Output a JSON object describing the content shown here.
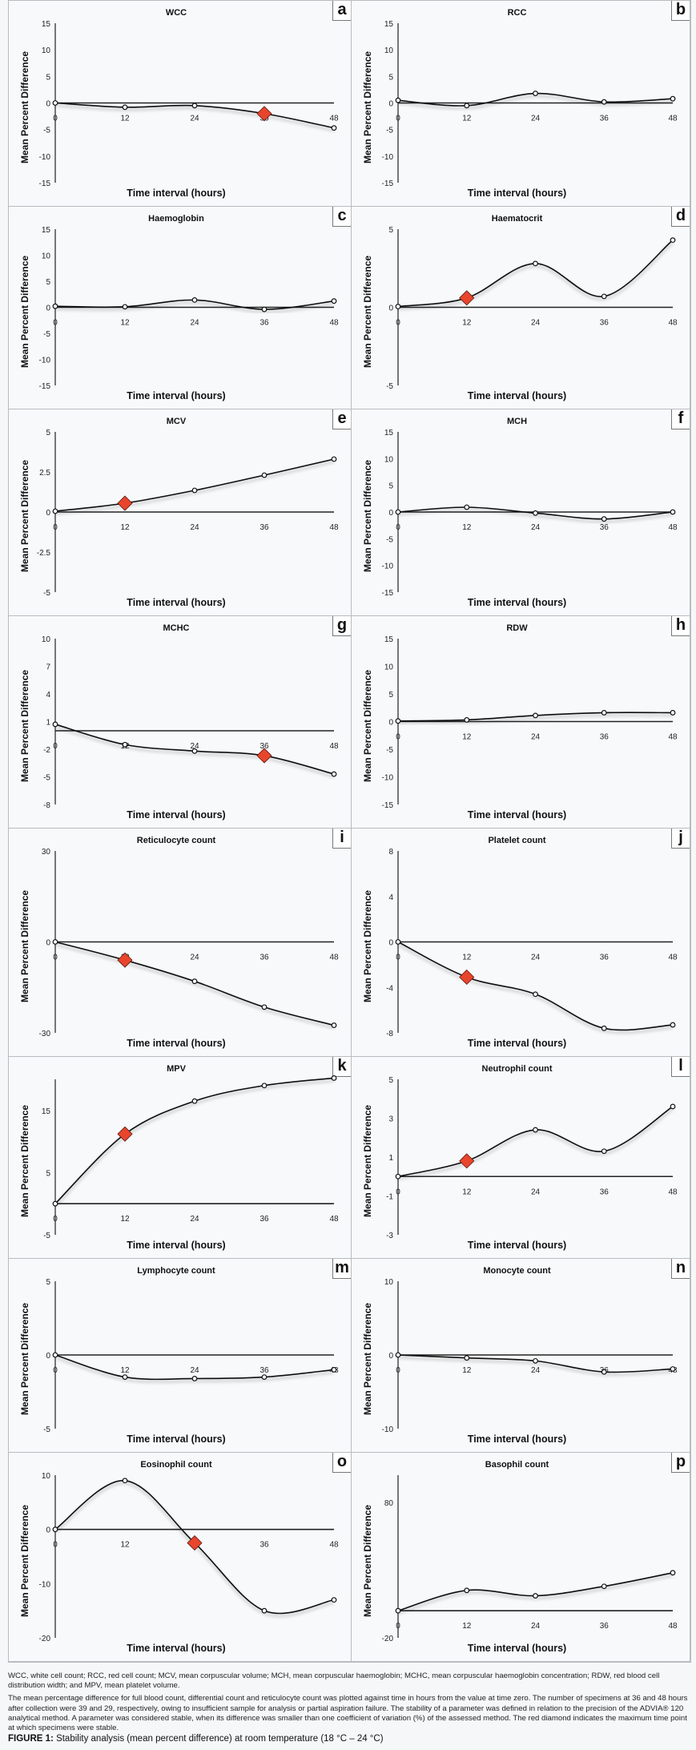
{
  "figure": {
    "abbreviations": "WCC, white cell count; RCC, red cell count; MCV, mean corpuscular volume; MCH, mean corpuscular haemoglobin; MCHC, mean corpuscular haemoglobin concentration; RDW, red blood cell distribution width; and MPV, mean platelet volume.",
    "description": "The mean percentage difference for full blood count, differential count and reticulocyte count was plotted against time in hours from the value at time zero. The number of specimens at 36 and 48 hours after collection were 39 and 29, respectively, owing to insufficient sample for analysis or partial aspiration failure. The stability of a parameter was defined in relation to the precision of the ADVIA® 120 analytical method. A parameter was considered stable, when its difference was smaller than one coefficient of variation (%) of the assessed method. The red diamond indicates the maximum time point at which specimens were stable.",
    "caption_label": "FIGURE 1:",
    "caption_text": " Stability analysis (mean percent difference) at room temperature (18 °C – 24 °C)"
  },
  "colors": {
    "marker": "#e8452c",
    "line": "#111111",
    "axis": "#555555"
  },
  "chart_data": [
    {
      "letter": "a",
      "type": "line",
      "title": "WCC",
      "xlabel": "Time interval (hours)",
      "ylabel": "Mean Percent Difference",
      "x": [
        0,
        12,
        24,
        36,
        48
      ],
      "values": [
        0,
        -0.8,
        -0.5,
        -2,
        -4.7
      ],
      "yticks": [
        15,
        10,
        5,
        0,
        -5,
        -10,
        -15
      ],
      "ylim": [
        -15,
        15
      ],
      "stable_point": 36
    },
    {
      "letter": "b",
      "type": "line",
      "title": "RCC",
      "xlabel": "Time interval (hours)",
      "ylabel": "Mean Percent Difference",
      "x": [
        0,
        12,
        24,
        36,
        48
      ],
      "values": [
        0.5,
        -0.5,
        1.8,
        0.2,
        0.8
      ],
      "yticks": [
        15,
        10,
        5,
        0,
        -5,
        -10,
        -15
      ],
      "ylim": [
        -15,
        15
      ],
      "stable_point": null
    },
    {
      "letter": "c",
      "type": "line",
      "title": "Haemoglobin",
      "xlabel": "Time interval (hours)",
      "ylabel": "Mean Percent Difference",
      "x": [
        0,
        12,
        24,
        36,
        48
      ],
      "values": [
        0.2,
        0.1,
        1.4,
        -0.4,
        1.2
      ],
      "yticks": [
        15,
        10,
        5,
        0,
        -5,
        -10,
        -15
      ],
      "ylim": [
        -15,
        15
      ],
      "stable_point": null
    },
    {
      "letter": "d",
      "type": "line",
      "title": "Haematocrit",
      "xlabel": "Time interval (hours)",
      "ylabel": "Mean Percent Difference",
      "x": [
        0,
        12,
        24,
        36,
        48
      ],
      "values": [
        0.05,
        0.6,
        2.8,
        0.7,
        4.3
      ],
      "yticks": [
        5,
        0,
        -5
      ],
      "ylim": [
        -5,
        5
      ],
      "stable_point": 12
    },
    {
      "letter": "e",
      "type": "line",
      "title": "MCV",
      "xlabel": "Time interval (hours)",
      "ylabel": "Mean Percent Difference",
      "x": [
        0,
        12,
        24,
        36,
        48
      ],
      "values": [
        0.05,
        0.55,
        1.35,
        2.3,
        3.3
      ],
      "yticks": [
        "5",
        "2.5",
        "0",
        "-2.5",
        "-5"
      ],
      "ylim": [
        -5,
        5
      ],
      "stable_point": 12
    },
    {
      "letter": "f",
      "type": "line",
      "title": "MCH",
      "xlabel": "Time interval (hours)",
      "ylabel": "Mean Percent Difference",
      "x": [
        0,
        12,
        24,
        36,
        48
      ],
      "values": [
        0,
        0.9,
        -0.2,
        -1.3,
        0
      ],
      "yticks": [
        15,
        10,
        5,
        0,
        -5,
        -10,
        -15
      ],
      "ylim": [
        -15,
        15
      ],
      "stable_point": null
    },
    {
      "letter": "g",
      "type": "line",
      "title": "MCHC",
      "xlabel": "Time interval (hours)",
      "ylabel": "Mean Percent Difference",
      "x": [
        0,
        12,
        24,
        36,
        48
      ],
      "values": [
        0.7,
        -1.5,
        -2.2,
        -2.7,
        -4.7
      ],
      "yticks": [
        10,
        7,
        4,
        1,
        -2,
        -5,
        -8
      ],
      "ylim": [
        -8,
        10
      ],
      "zero_at": 0,
      "stable_point": 36
    },
    {
      "letter": "h",
      "type": "line",
      "title": "RDW",
      "xlabel": "Time interval (hours)",
      "ylabel": "Mean Percent Difference",
      "x": [
        0,
        12,
        24,
        36,
        48
      ],
      "values": [
        0.1,
        0.3,
        1.1,
        1.6,
        1.6
      ],
      "yticks": [
        15,
        10,
        5,
        0,
        -5,
        -10,
        -15
      ],
      "ylim": [
        -15,
        15
      ],
      "stable_point": null
    },
    {
      "letter": "i",
      "type": "line",
      "title": "Reticulocyte count",
      "xlabel": "Time interval (hours)",
      "ylabel": "Mean Percent Difference",
      "x": [
        0,
        12,
        24,
        36,
        48
      ],
      "values": [
        0,
        -6,
        -13,
        -21.5,
        -27.5
      ],
      "yticks": [
        30,
        0,
        -30
      ],
      "ylim": [
        -30,
        30
      ],
      "stable_point": 12
    },
    {
      "letter": "j",
      "type": "line",
      "title": "Platelet count",
      "xlabel": "Time interval (hours)",
      "ylabel": "Mean Percent Difference",
      "x": [
        0,
        12,
        24,
        36,
        48
      ],
      "values": [
        0,
        -3.1,
        -4.6,
        -7.6,
        -7.3
      ],
      "yticks": [
        8,
        4,
        0,
        -4,
        -8
      ],
      "ylim": [
        -8,
        8
      ],
      "stable_point": 12
    },
    {
      "letter": "k",
      "type": "line",
      "title": "MPV",
      "xlabel": "Time interval (hours)",
      "ylabel": "Mean Percent Difference",
      "x": [
        0,
        12,
        24,
        36,
        48
      ],
      "values": [
        0,
        11.2,
        16.5,
        19,
        20.2
      ],
      "yticks": [
        15,
        5,
        -5
      ],
      "ylim": [
        -5,
        20
      ],
      "stable_point": 12
    },
    {
      "letter": "l",
      "type": "line",
      "title": "Neutrophil count",
      "xlabel": "Time interval (hours)",
      "ylabel": "Mean Percent Difference",
      "x": [
        0,
        12,
        24,
        36,
        48
      ],
      "values": [
        0,
        0.8,
        2.4,
        1.3,
        3.6
      ],
      "yticks": [
        5,
        3,
        1,
        -1,
        -3
      ],
      "ylim": [
        -3,
        5
      ],
      "stable_point": 12
    },
    {
      "letter": "m",
      "type": "line",
      "title": "Lymphocyte count",
      "xlabel": "Time interval (hours)",
      "ylabel": "Mean Percent Difference",
      "x": [
        0,
        12,
        24,
        36,
        48
      ],
      "values": [
        0,
        -1.5,
        -1.6,
        -1.5,
        -1.0
      ],
      "yticks": [
        5,
        0,
        -5
      ],
      "ylim": [
        -5,
        5
      ],
      "stable_point": null
    },
    {
      "letter": "n",
      "type": "line",
      "title": "Monocyte count",
      "xlabel": "Time interval (hours)",
      "ylabel": "Mean Percent Difference",
      "x": [
        0,
        12,
        24,
        36,
        48
      ],
      "values": [
        0,
        -0.4,
        -0.8,
        -2.3,
        -1.9
      ],
      "yticks": [
        10,
        0,
        -10
      ],
      "ylim": [
        -10,
        10
      ],
      "stable_point": null
    },
    {
      "letter": "o",
      "type": "line",
      "title": "Eosinophil count",
      "xlabel": "Time interval (hours)",
      "ylabel": "Mean Percent Difference",
      "x": [
        0,
        12,
        24,
        36,
        48
      ],
      "values": [
        0,
        9,
        -2.5,
        -15,
        -13
      ],
      "yticks": [
        10,
        0,
        -10,
        -20
      ],
      "ylim": [
        -20,
        10
      ],
      "stable_point": 24
    },
    {
      "letter": "p",
      "type": "line",
      "title": "Basophil count",
      "xlabel": "Time interval (hours)",
      "ylabel": "Mean Percent Difference",
      "x": [
        0,
        12,
        24,
        36,
        48
      ],
      "values": [
        0,
        15,
        11,
        18,
        28
      ],
      "yticks": [
        80,
        -20
      ],
      "ylim": [
        -20,
        100
      ],
      "stable_point": null
    }
  ]
}
